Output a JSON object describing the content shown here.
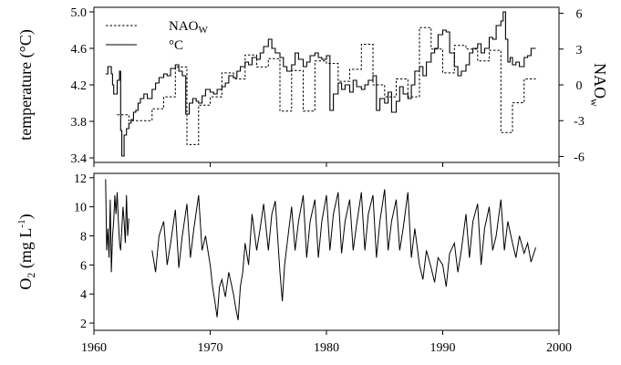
{
  "chart_data": [
    {
      "type": "line",
      "panel": "top",
      "ylabel": "temperature (°C)",
      "y2label": "NAOw",
      "ylim": [
        3.35,
        5.05
      ],
      "yticks": [
        3.4,
        3.8,
        4.2,
        4.6,
        5.0
      ],
      "ytick_labels": [
        "3.4",
        "3.8",
        "4.2",
        "4.6",
        "5.0"
      ],
      "y2lim": [
        -6.5,
        6.5
      ],
      "y2ticks": [
        -6,
        -3,
        0,
        3,
        6
      ],
      "y2tick_labels": [
        "-6",
        "-3",
        "0",
        "3",
        "6"
      ],
      "xlim": [
        1960,
        2000
      ],
      "legend": {
        "placement": "top-left",
        "entries": [
          {
            "key": "nao",
            "label": "NAO",
            "subscript": "W",
            "style": "dashed"
          },
          {
            "key": "temp",
            "label": "°C",
            "style": "solid"
          }
        ]
      },
      "series": [
        {
          "key": "temp",
          "style": "solid",
          "axis": "left",
          "x": [
            1961.0,
            1961.2,
            1961.3,
            1961.5,
            1961.6,
            1961.7,
            1961.9,
            1962.0,
            1962.2,
            1962.3,
            1962.4,
            1962.6,
            1962.8,
            1963.0,
            1963.2,
            1963.4,
            1963.6,
            1963.8,
            1964.0,
            1964.3,
            1964.6,
            1965.0,
            1965.3,
            1965.6,
            1966.0,
            1966.3,
            1966.6,
            1967.0,
            1967.3,
            1967.6,
            1967.9,
            1968.2,
            1968.5,
            1968.8,
            1969.0,
            1969.3,
            1969.6,
            1970.0,
            1970.3,
            1970.6,
            1971.0,
            1971.3,
            1971.6,
            1972.0,
            1972.3,
            1972.6,
            1973.0,
            1973.3,
            1973.6,
            1974.0,
            1974.3,
            1974.6,
            1975.0,
            1975.3,
            1975.6,
            1976.0,
            1976.3,
            1976.6,
            1977.0,
            1977.3,
            1977.6,
            1978.0,
            1978.3,
            1978.6,
            1979.0,
            1979.3,
            1979.6,
            1980.0,
            1980.3,
            1980.6,
            1981.0,
            1981.3,
            1981.6,
            1982.0,
            1982.3,
            1982.6,
            1983.0,
            1983.3,
            1983.6,
            1984.0,
            1984.3,
            1984.6,
            1985.0,
            1985.3,
            1985.6,
            1986.0,
            1986.3,
            1986.6,
            1987.0,
            1987.3,
            1987.6,
            1988.0,
            1988.3,
            1988.6,
            1989.0,
            1989.3,
            1989.6,
            1990.0,
            1990.3,
            1990.6,
            1991.0,
            1991.3,
            1991.6,
            1992.0,
            1992.3,
            1992.6,
            1993.0,
            1993.3,
            1993.6,
            1994.0,
            1994.3,
            1994.6,
            1995.0,
            1995.2,
            1995.4,
            1995.6,
            1995.8,
            1996.0,
            1996.3,
            1996.6,
            1997.0,
            1997.3,
            1997.6,
            1998.0
          ],
          "y": [
            4.32,
            4.4,
            4.4,
            4.32,
            4.2,
            4.1,
            4.1,
            4.25,
            4.35,
            3.7,
            3.42,
            3.65,
            3.72,
            3.78,
            3.82,
            3.9,
            3.92,
            4.0,
            4.05,
            4.1,
            4.05,
            4.15,
            4.22,
            4.28,
            4.32,
            4.3,
            4.38,
            4.42,
            4.35,
            4.3,
            3.88,
            4.0,
            4.05,
            4.02,
            4.0,
            4.08,
            4.15,
            4.12,
            4.1,
            4.15,
            4.18,
            4.22,
            4.3,
            4.28,
            4.35,
            4.4,
            4.45,
            4.42,
            4.5,
            4.48,
            4.55,
            4.62,
            4.7,
            4.6,
            4.55,
            4.5,
            4.4,
            4.35,
            4.42,
            4.55,
            4.48,
            4.4,
            4.45,
            4.52,
            4.55,
            4.5,
            4.48,
            4.52,
            3.92,
            4.1,
            4.22,
            4.15,
            4.2,
            4.12,
            4.25,
            4.18,
            4.15,
            4.2,
            4.25,
            4.3,
            3.92,
            4.05,
            4.0,
            4.12,
            3.9,
            4.02,
            4.18,
            4.1,
            4.05,
            4.2,
            4.35,
            4.4,
            4.3,
            4.45,
            4.55,
            4.6,
            4.75,
            4.8,
            4.78,
            4.55,
            4.4,
            4.3,
            4.35,
            4.42,
            4.55,
            4.6,
            4.65,
            4.55,
            4.6,
            4.72,
            4.7,
            4.85,
            4.9,
            5.0,
            4.7,
            4.45,
            4.5,
            4.42,
            4.45,
            4.4,
            4.5,
            4.52,
            4.6,
            4.6
          ]
        },
        {
          "key": "nao",
          "style": "dashed",
          "axis": "right",
          "x": [
            1962.0,
            1963.0,
            1964.0,
            1965.0,
            1966.0,
            1967.0,
            1968.0,
            1969.0,
            1970.0,
            1971.0,
            1972.0,
            1973.0,
            1974.0,
            1975.0,
            1976.0,
            1977.0,
            1978.0,
            1979.0,
            1980.0,
            1981.0,
            1982.0,
            1983.0,
            1984.0,
            1985.0,
            1986.0,
            1987.0,
            1988.0,
            1989.0,
            1990.0,
            1991.0,
            1992.0,
            1993.0,
            1994.0,
            1995.0,
            1996.0,
            1997.0
          ],
          "y": [
            -2.5,
            -3.0,
            -3.0,
            -2.0,
            -1.0,
            1.5,
            -5.0,
            -1.7,
            -1.0,
            1.0,
            0.5,
            2.5,
            1.5,
            2.2,
            -2.2,
            1.2,
            -2.2,
            2.0,
            1.8,
            0.3,
            1.3,
            3.4,
            0.0,
            -1.0,
            0.5,
            -1.0,
            4.8,
            3.0,
            1.0,
            3.3,
            3.0,
            2.0,
            2.9,
            -4.0,
            -1.5,
            0.5
          ]
        }
      ]
    },
    {
      "type": "line",
      "panel": "bottom",
      "ylabel": "O2 (mg L-1)",
      "ylim": [
        1.5,
        12.3
      ],
      "yticks": [
        2,
        4,
        6,
        8,
        10,
        12
      ],
      "ytick_labels": [
        "2",
        "4",
        "6",
        "8",
        "10",
        "12"
      ],
      "xlim": [
        1960,
        2000
      ],
      "xticks": [
        1960,
        1970,
        1980,
        1990,
        2000
      ],
      "xtick_labels": [
        "1960",
        "1970",
        "1980",
        "1990",
        "2000"
      ],
      "series": [
        {
          "key": "o2",
          "style": "solid",
          "segments": [
            {
              "x": [
                1961.0,
                1961.1,
                1961.2,
                1961.3,
                1961.4,
                1961.5,
                1961.6,
                1961.7,
                1961.8,
                1961.9,
                1962.0,
                1962.1,
                1962.2,
                1962.3,
                1962.4,
                1962.5,
                1962.6,
                1962.7,
                1962.8,
                1962.9,
                1963.0
              ],
              "y": [
                11.9,
                7.0,
                8.5,
                6.5,
                10.5,
                5.5,
                8.0,
                9.0,
                10.8,
                9.5,
                11.0,
                9.0,
                7.5,
                7.0,
                8.5,
                10.0,
                9.0,
                7.5,
                10.8,
                8.0,
                9.2
              ]
            },
            {
              "x": [
                1965.0,
                1965.3,
                1965.6,
                1966.0,
                1966.3,
                1966.6,
                1967.0,
                1967.3,
                1967.6,
                1968.0,
                1968.3,
                1968.6,
                1969.0,
                1969.3,
                1969.6,
                1970.0,
                1970.2,
                1970.4,
                1970.6,
                1970.8,
                1971.0,
                1971.3,
                1971.6,
                1972.0,
                1972.2,
                1972.4,
                1972.6,
                1972.8,
                1973.0,
                1973.3,
                1973.6,
                1974.0,
                1974.3,
                1974.6,
                1975.0,
                1975.3,
                1975.6,
                1976.0,
                1976.2,
                1976.4,
                1976.7,
                1977.0,
                1977.3,
                1977.6,
                1978.0,
                1978.3,
                1978.6,
                1979.0,
                1979.3,
                1979.6,
                1980.0,
                1980.3,
                1980.6,
                1981.0,
                1981.3,
                1981.6,
                1982.0,
                1982.3,
                1982.6,
                1983.0,
                1983.3,
                1983.6,
                1984.0,
                1984.3,
                1984.6,
                1985.0,
                1985.3,
                1985.6,
                1986.0,
                1986.3,
                1986.6,
                1987.0,
                1987.3,
                1987.6,
                1988.0,
                1988.3,
                1988.6,
                1989.0,
                1989.3,
                1989.6,
                1990.0,
                1990.3,
                1990.6,
                1991.0,
                1991.3,
                1991.6,
                1992.0,
                1992.3,
                1992.6,
                1993.0,
                1993.3,
                1993.6,
                1994.0,
                1994.3,
                1994.6,
                1995.0,
                1995.3,
                1995.6,
                1996.0,
                1996.3,
                1996.6,
                1997.0,
                1997.3,
                1997.6,
                1998.0
              ],
              "y": [
                7.0,
                5.5,
                8.0,
                9.0,
                6.0,
                7.5,
                9.8,
                5.8,
                8.0,
                10.2,
                6.5,
                8.5,
                10.8,
                7.0,
                8.0,
                6.0,
                4.5,
                3.5,
                2.4,
                4.5,
                5.0,
                3.8,
                5.5,
                4.0,
                3.0,
                2.2,
                4.5,
                5.5,
                7.5,
                6.0,
                9.5,
                7.0,
                8.5,
                10.2,
                7.0,
                9.5,
                10.4,
                5.5,
                3.5,
                6.0,
                8.0,
                10.0,
                7.0,
                9.0,
                10.8,
                6.5,
                9.0,
                10.5,
                6.5,
                9.0,
                10.8,
                7.0,
                9.5,
                11.0,
                6.8,
                9.0,
                10.5,
                7.0,
                8.8,
                11.0,
                7.0,
                9.5,
                10.8,
                6.5,
                9.0,
                11.2,
                7.0,
                9.0,
                10.5,
                7.0,
                8.5,
                11.0,
                6.5,
                8.5,
                6.0,
                5.0,
                7.0,
                5.8,
                4.8,
                6.5,
                6.0,
                4.5,
                6.8,
                7.5,
                5.5,
                7.0,
                9.5,
                6.5,
                9.0,
                10.2,
                6.0,
                8.5,
                10.0,
                7.0,
                8.0,
                10.5,
                7.0,
                9.0,
                7.5,
                6.5,
                8.0,
                6.8,
                7.5,
                6.2,
                7.2
              ]
            }
          ]
        }
      ]
    }
  ]
}
